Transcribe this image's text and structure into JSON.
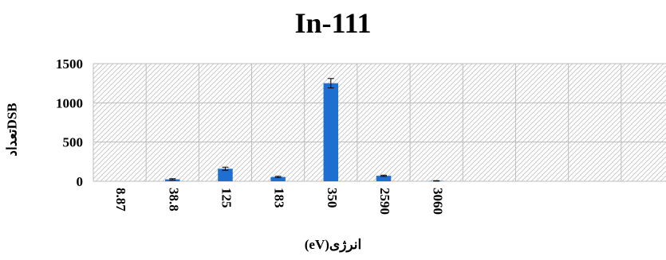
{
  "chart_data": {
    "type": "bar",
    "title": "In-111",
    "xlabel": "انرژی(eV)",
    "ylabel": "تعدادDSB",
    "categories": [
      "8.87",
      "38.8",
      "125",
      "183",
      "350",
      "2590",
      "3060",
      "",
      "",
      "",
      ""
    ],
    "values": [
      0,
      25,
      160,
      55,
      1250,
      70,
      5,
      null,
      null,
      null,
      null
    ],
    "errors": [
      0,
      8,
      20,
      8,
      60,
      8,
      3,
      null,
      null,
      null,
      null
    ],
    "ylim": [
      0,
      1500
    ],
    "yticks": [
      0,
      500,
      1000,
      1500
    ],
    "bar_color": "#1f6fd1",
    "plot_background": "diagonal-hatch",
    "grid": true,
    "legend": false
  }
}
